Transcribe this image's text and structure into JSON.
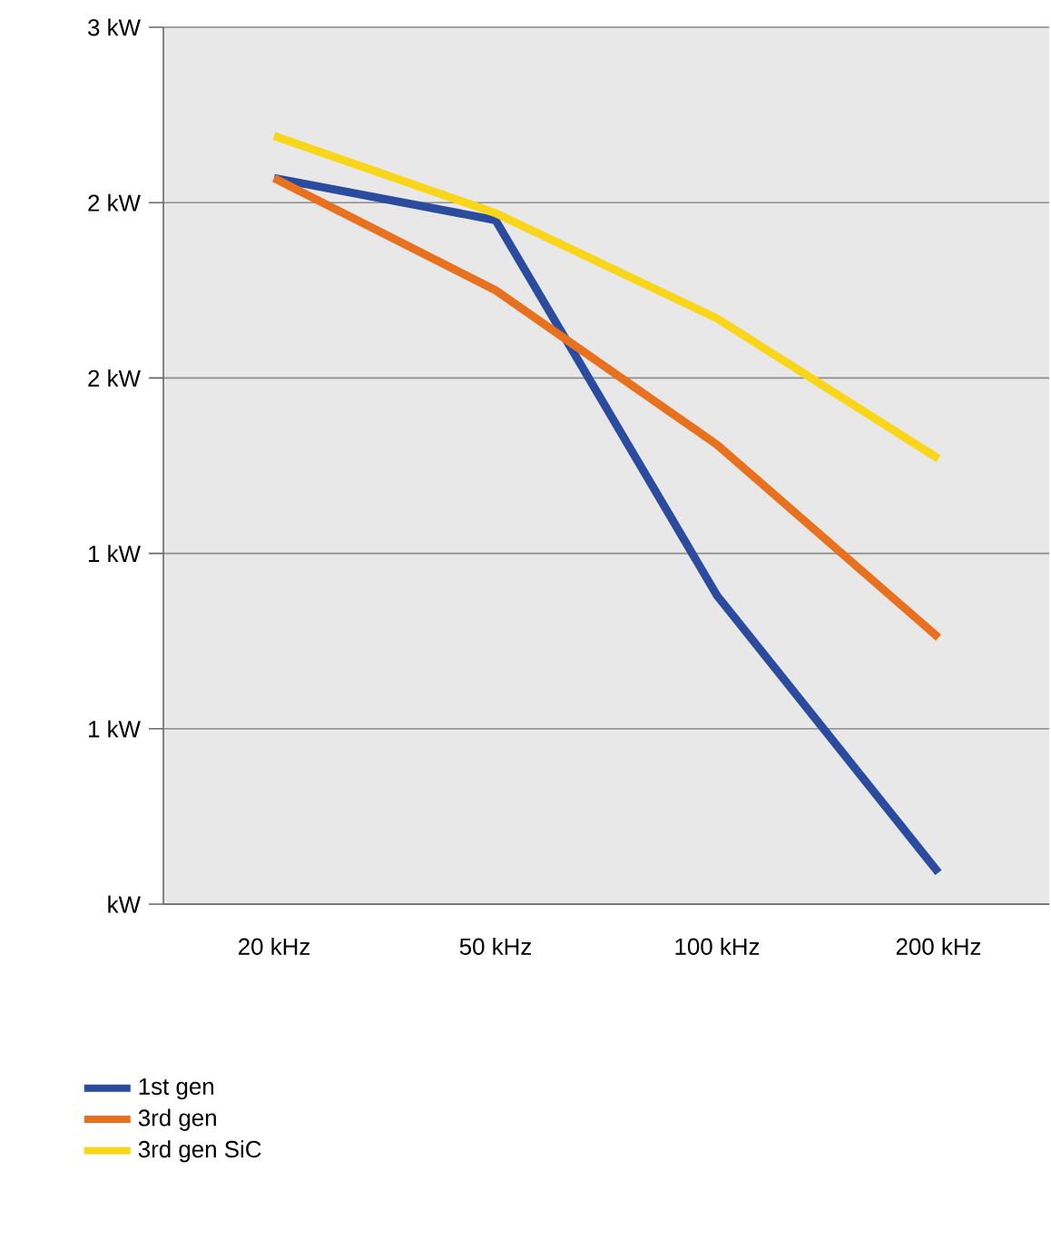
{
  "chart_data": {
    "type": "line",
    "categories": [
      "20 kHz",
      "50 kHz",
      "100 kHz",
      "200 kHz"
    ],
    "series": [
      {
        "name": "1st gen",
        "color": "#2b4c9e",
        "values": [
          2.07,
          1.95,
          0.88,
          0.09
        ]
      },
      {
        "name": "3rd gen",
        "color": "#e8711f",
        "values": [
          2.07,
          1.75,
          1.31,
          0.76
        ]
      },
      {
        "name": "3rd gen SiC",
        "color": "#f9d61a",
        "values": [
          2.19,
          1.97,
          1.67,
          1.27
        ]
      }
    ],
    "ylim": [
      0,
      2.5
    ],
    "yticks": [
      {
        "value": 0,
        "label": "kW"
      },
      {
        "value": 0.5,
        "label": "1 kW"
      },
      {
        "value": 1,
        "label": "1 kW"
      },
      {
        "value": 1.5,
        "label": "2 kW"
      },
      {
        "value": 2,
        "label": "2 kW"
      },
      {
        "value": 2.5,
        "label": "3 kW"
      }
    ],
    "grid": "y",
    "legend": "bottom",
    "marker": "none",
    "line_style": "solid"
  }
}
